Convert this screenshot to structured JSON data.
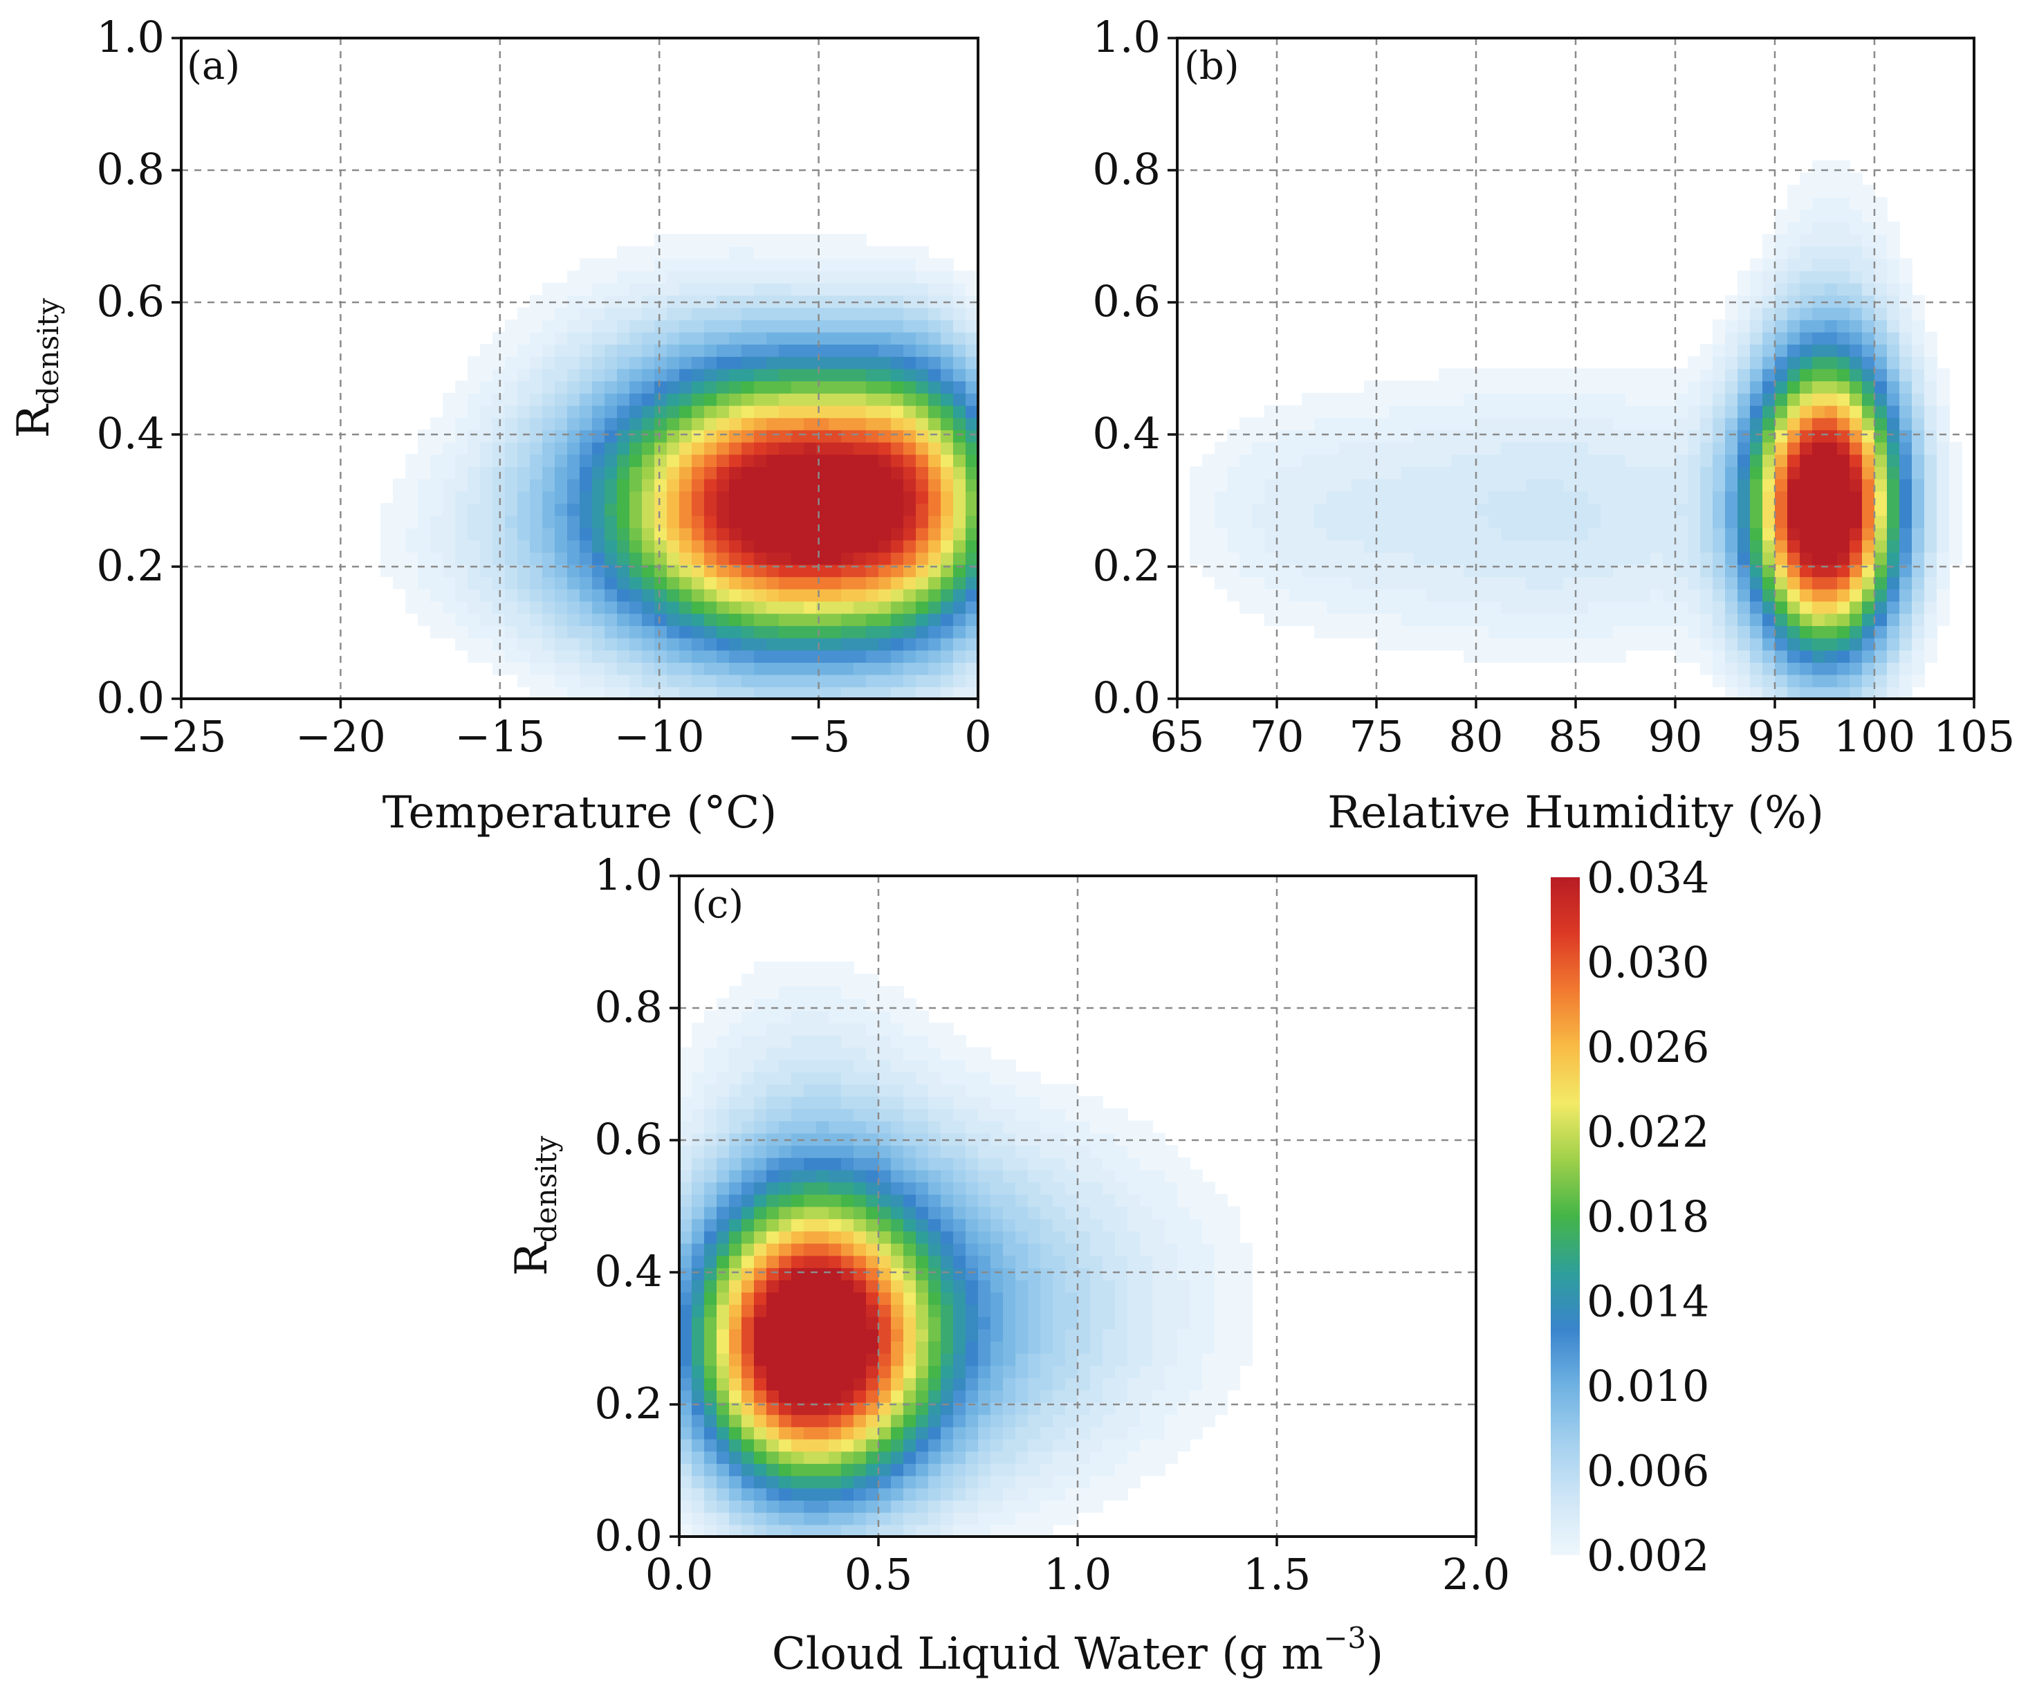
{
  "chart_data": [
    {
      "type": "heatmap",
      "panel_label": "(a)",
      "xlabel": "Temperature (°C)",
      "ylabel": "R",
      "ylabel_sub": "density",
      "xlim": [
        -25,
        0
      ],
      "ylim": [
        0.0,
        1.0
      ],
      "xticks": [
        -25,
        -20,
        -15,
        -10,
        -5,
        0
      ],
      "xtick_labels": [
        "−25",
        "−20",
        "−15",
        "−10",
        "−5",
        "0"
      ],
      "yticks": [
        0.0,
        0.2,
        0.4,
        0.6,
        0.8,
        1.0
      ],
      "ytick_labels": [
        "0.0",
        "0.2",
        "0.4",
        "0.6",
        "0.8",
        "1.0"
      ],
      "grid": true,
      "density": {
        "peak": {
          "x": -5.5,
          "y": 0.29,
          "value": 0.034
        },
        "components": [
          {
            "x": -5.5,
            "y": 0.29,
            "sx": 4.2,
            "sy": 0.145,
            "amp": 0.036
          },
          {
            "x": -2.0,
            "y": 0.33,
            "sx": 1.6,
            "sy": 0.17,
            "amp": 0.006
          },
          {
            "x": -9.0,
            "y": 0.36,
            "sx": 5.2,
            "sy": 0.26,
            "amp": 0.0038
          },
          {
            "x": -16.0,
            "y": 0.22,
            "sx": 3.5,
            "sy": 0.12,
            "amp": 0.0016
          }
        ]
      }
    },
    {
      "type": "heatmap",
      "panel_label": "(b)",
      "xlabel": "Relative Humidity (%)",
      "xlim": [
        65,
        105
      ],
      "ylim": [
        0.0,
        1.0
      ],
      "xticks": [
        65,
        70,
        75,
        80,
        85,
        90,
        95,
        100,
        105
      ],
      "xtick_labels": [
        "65",
        "70",
        "75",
        "80",
        "85",
        "90",
        "95",
        "100",
        "105"
      ],
      "yticks": [
        0.0,
        0.2,
        0.4,
        0.6,
        0.8,
        1.0
      ],
      "ytick_labels": [
        "0.0",
        "0.2",
        "0.4",
        "0.6",
        "0.8",
        "1.0"
      ],
      "grid": true,
      "density": {
        "peak": {
          "x": 97.5,
          "y": 0.29,
          "value": 0.034
        },
        "components": [
          {
            "x": 97.5,
            "y": 0.29,
            "sx": 2.6,
            "sy": 0.15,
            "amp": 0.036
          },
          {
            "x": 98.0,
            "y": 0.45,
            "sx": 3.0,
            "sy": 0.3,
            "amp": 0.004
          },
          {
            "x": 84.0,
            "y": 0.28,
            "sx": 9.0,
            "sy": 0.17,
            "amp": 0.0048
          },
          {
            "x": 70.0,
            "y": 0.28,
            "sx": 5.0,
            "sy": 0.14,
            "amp": 0.0022
          }
        ]
      }
    },
    {
      "type": "heatmap",
      "panel_label": "(c)",
      "xlabel": "Cloud Liquid Water (g m",
      "xlabel_sup": "−3",
      "xlabel_end": ")",
      "ylabel": "R",
      "ylabel_sub": "density",
      "xlim": [
        0.0,
        2.0
      ],
      "ylim": [
        0.0,
        1.0
      ],
      "xticks": [
        0.0,
        0.5,
        1.0,
        1.5,
        2.0
      ],
      "xtick_labels": [
        "0.0",
        "0.5",
        "1.0",
        "1.5",
        "2.0"
      ],
      "yticks": [
        0.0,
        0.2,
        0.4,
        0.6,
        0.8,
        1.0
      ],
      "ytick_labels": [
        "0.0",
        "0.2",
        "0.4",
        "0.6",
        "0.8",
        "1.0"
      ],
      "grid": true,
      "density": {
        "peak": {
          "x": 0.32,
          "y": 0.29,
          "value": 0.034
        },
        "components": [
          {
            "x": 0.32,
            "y": 0.29,
            "sx": 0.2,
            "sy": 0.15,
            "amp": 0.036
          },
          {
            "x": 0.6,
            "y": 0.33,
            "sx": 0.3,
            "sy": 0.18,
            "amp": 0.006
          },
          {
            "x": 0.9,
            "y": 0.36,
            "sx": 0.45,
            "sy": 0.23,
            "amp": 0.004
          },
          {
            "x": 0.3,
            "y": 0.65,
            "sx": 0.25,
            "sy": 0.2,
            "amp": 0.0035
          }
        ]
      }
    }
  ],
  "colorbar": {
    "min": 0.002,
    "max": 0.034,
    "ticks": [
      0.002,
      0.006,
      0.01,
      0.014,
      0.018,
      0.022,
      0.026,
      0.03,
      0.034
    ],
    "tick_labels": [
      "0.002",
      "0.006",
      "0.010",
      "0.014",
      "0.018",
      "0.022",
      "0.026",
      "0.030",
      "0.034"
    ],
    "colors": [
      "#eef6fc",
      "#cfe6f6",
      "#a3d0ee",
      "#6fb2e2",
      "#3a84cc",
      "#2f9f9a",
      "#44b548",
      "#9fd04a",
      "#f3ea67",
      "#f8bb45",
      "#f17a30",
      "#dc3a25",
      "#b81c24"
    ]
  }
}
